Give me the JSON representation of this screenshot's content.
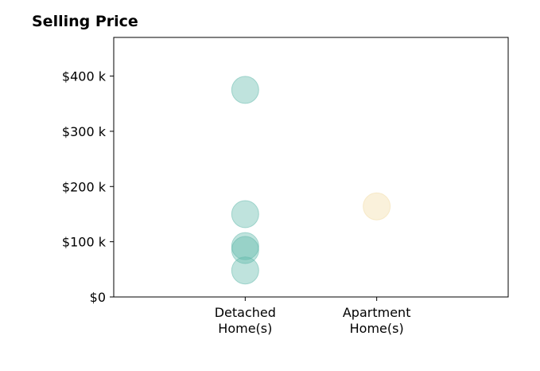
{
  "chart_data": {
    "type": "scatter",
    "title": "Selling Price",
    "xlabel": "",
    "ylabel": "",
    "categories": [
      [
        "Detached",
        "Home(s)"
      ],
      [
        "Apartment",
        "Home(s)"
      ]
    ],
    "xlim": [
      0,
      3
    ],
    "ylim": [
      0,
      470000
    ],
    "y_ticks": [
      {
        "value": 0,
        "label": "$0"
      },
      {
        "value": 100000,
        "label": "$100 k"
      },
      {
        "value": 200000,
        "label": "$200 k"
      },
      {
        "value": 300000,
        "label": "$300 k"
      },
      {
        "value": 400000,
        "label": "$400 k"
      }
    ],
    "grid": false,
    "series": [
      {
        "category": [
          "Detached",
          "Home(s)"
        ],
        "color": "#5fb8aa",
        "points": [
          {
            "x": 1,
            "y": 375000
          },
          {
            "x": 1,
            "y": 150000
          },
          {
            "x": 1,
            "y": 92000
          },
          {
            "x": 1,
            "y": 85000
          },
          {
            "x": 1,
            "y": 48000
          }
        ]
      },
      {
        "category": [
          "Apartment",
          "Home(s)"
        ],
        "color": "#f2dca5",
        "points": [
          {
            "x": 2,
            "y": 164000
          }
        ]
      }
    ]
  }
}
